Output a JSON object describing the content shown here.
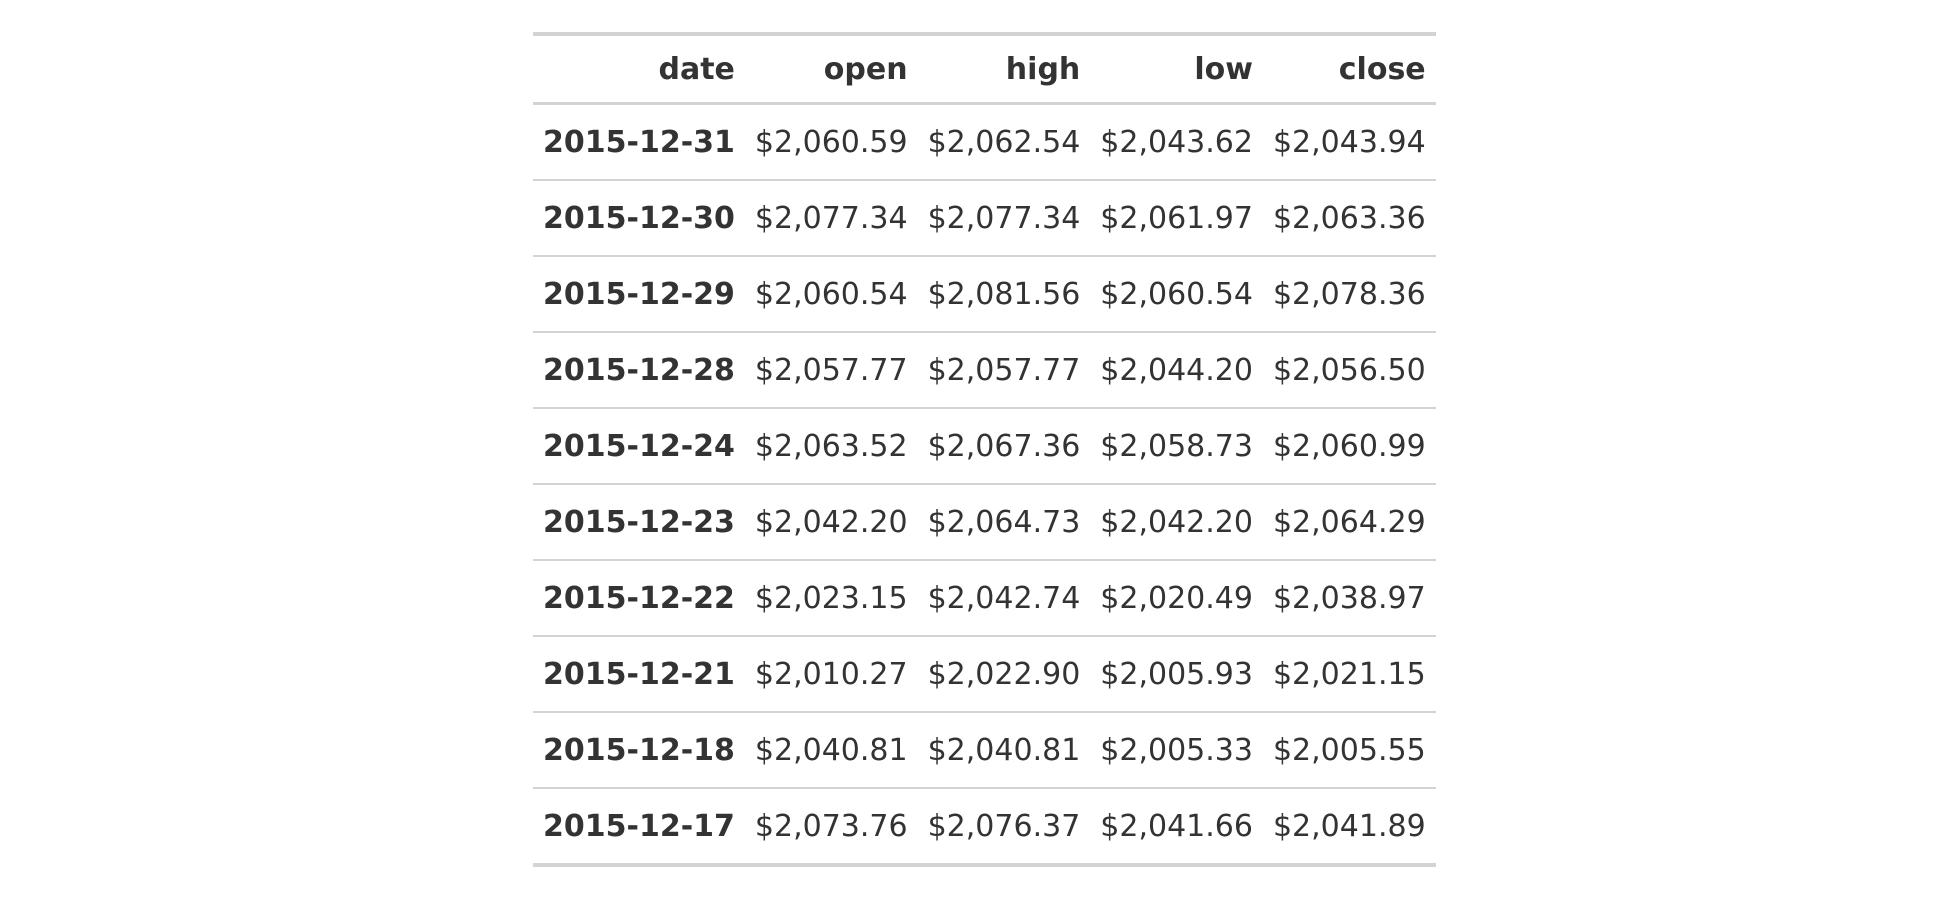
{
  "table": {
    "headers": [
      "date",
      "open",
      "high",
      "low",
      "close"
    ],
    "rows": [
      [
        "2015-12-31",
        "$2,060.59",
        "$2,062.54",
        "$2,043.62",
        "$2,043.94"
      ],
      [
        "2015-12-30",
        "$2,077.34",
        "$2,077.34",
        "$2,061.97",
        "$2,063.36"
      ],
      [
        "2015-12-29",
        "$2,060.54",
        "$2,081.56",
        "$2,060.54",
        "$2,078.36"
      ],
      [
        "2015-12-28",
        "$2,057.77",
        "$2,057.77",
        "$2,044.20",
        "$2,056.50"
      ],
      [
        "2015-12-24",
        "$2,063.52",
        "$2,067.36",
        "$2,058.73",
        "$2,060.99"
      ],
      [
        "2015-12-23",
        "$2,042.20",
        "$2,064.73",
        "$2,042.20",
        "$2,064.29"
      ],
      [
        "2015-12-22",
        "$2,023.15",
        "$2,042.74",
        "$2,020.49",
        "$2,038.97"
      ],
      [
        "2015-12-21",
        "$2,010.27",
        "$2,022.90",
        "$2,005.93",
        "$2,021.15"
      ],
      [
        "2015-12-18",
        "$2,040.81",
        "$2,040.81",
        "$2,005.33",
        "$2,005.55"
      ],
      [
        "2015-12-17",
        "$2,073.76",
        "$2,076.37",
        "$2,041.66",
        "$2,041.89"
      ]
    ]
  }
}
